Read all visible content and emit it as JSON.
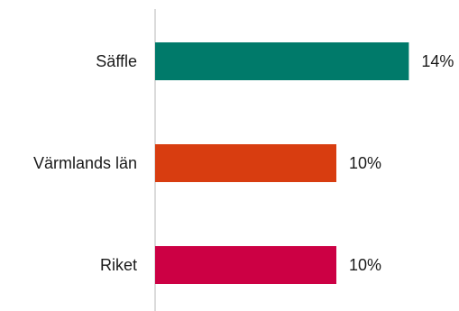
{
  "chart_data": {
    "type": "bar",
    "orientation": "horizontal",
    "categories": [
      "Säffle",
      "Värmlands län",
      "Riket"
    ],
    "values": [
      14,
      10,
      10
    ],
    "value_labels": [
      "14%",
      "10%",
      "10%"
    ],
    "colors": [
      "#007a6a",
      "#d83d10",
      "#cc0044"
    ],
    "xlim": [
      0,
      20
    ],
    "grid": false,
    "legend": "none"
  }
}
